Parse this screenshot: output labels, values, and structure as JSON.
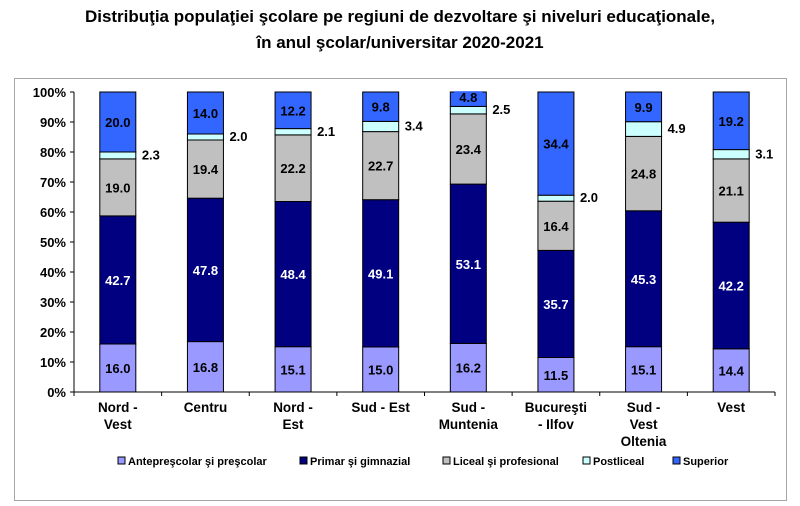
{
  "chart_data": {
    "type": "bar",
    "stacked": true,
    "title_line1": "Distribuţia populaţiei şcolare pe regiuni de dezvoltare şi niveluri educaţionale,",
    "title_line2": "în anul şcolar/universitar 2020-2021",
    "categories": [
      [
        "Nord -",
        "Vest"
      ],
      [
        "Centru"
      ],
      [
        "Nord -",
        "Est"
      ],
      [
        "Sud - Est"
      ],
      [
        "Sud -",
        "Muntenia"
      ],
      [
        "Bucureşti",
        "- Ilfov"
      ],
      [
        "Sud -",
        "Vest",
        "Oltenia"
      ],
      [
        "Vest"
      ]
    ],
    "yticks": [
      "0%",
      "10%",
      "20%",
      "30%",
      "40%",
      "50%",
      "60%",
      "70%",
      "80%",
      "90%",
      "100%"
    ],
    "ylim": [
      0,
      100
    ],
    "grid": false,
    "legend_position": "bottom",
    "series": [
      {
        "name": "Antepreşcolar şi preşcolar",
        "color": "#9999ff",
        "label_color": "#000000",
        "values": [
          16.0,
          16.8,
          15.1,
          15.0,
          16.2,
          11.5,
          15.1,
          14.4
        ]
      },
      {
        "name": "Primar şi gimnazial",
        "color": "#000080",
        "label_color": "#ffffff",
        "values": [
          42.7,
          47.8,
          48.4,
          49.1,
          53.1,
          35.7,
          45.3,
          42.2
        ]
      },
      {
        "name": "Liceal şi profesional",
        "color": "#c0c0c0",
        "label_color": "#000000",
        "values": [
          19.0,
          19.4,
          22.2,
          22.7,
          23.4,
          16.4,
          24.8,
          21.1
        ]
      },
      {
        "name": "Postliceal",
        "color": "#ccffff",
        "label_color": "#000000",
        "values": [
          2.3,
          2.0,
          2.1,
          3.4,
          2.5,
          2.0,
          4.9,
          3.1
        ]
      },
      {
        "name": "Superior",
        "color": "#3366ff",
        "label_color": "#000000",
        "values": [
          20.0,
          14.0,
          12.2,
          9.8,
          4.8,
          34.4,
          9.9,
          19.2
        ]
      }
    ],
    "value_labels": [
      [
        "16.0",
        "42.7",
        "19.0",
        "2.3",
        "20.0"
      ],
      [
        "16.8",
        "47.8",
        "19.4",
        "2.0",
        "14.0"
      ],
      [
        "15.1",
        "48.4",
        "22.2",
        "2.1",
        "12.2"
      ],
      [
        "15.0",
        "49.1",
        "22.7",
        "3.4",
        "9.8"
      ],
      [
        "16.2",
        "53.1",
        "23.4",
        "2.5",
        "4.8"
      ],
      [
        "11.5",
        "35.7",
        "16.4",
        "2.0",
        "34.4"
      ],
      [
        "15.1",
        "45.3",
        "24.8",
        "4.9",
        "9.9"
      ],
      [
        "14.4",
        "42.2",
        "21.1",
        "3.1",
        "19.2"
      ]
    ]
  }
}
